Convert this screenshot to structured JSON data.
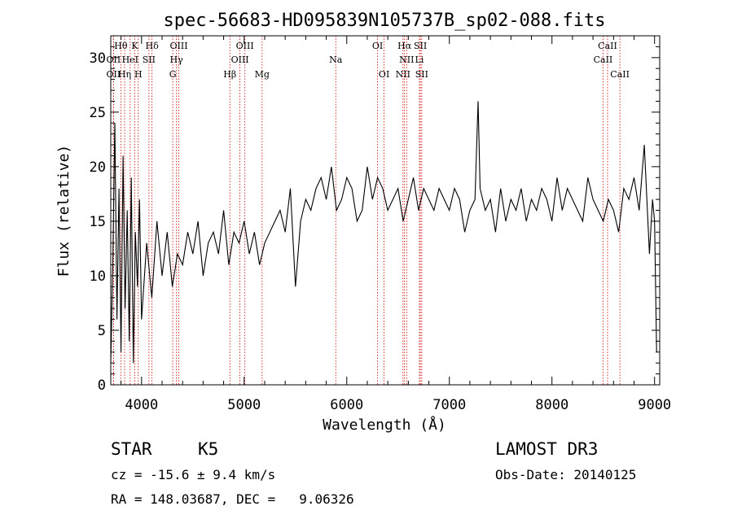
{
  "chart_data": {
    "type": "line",
    "title": "spec-56683-HD095839N105737B_sp02-088.fits",
    "xlabel": "Wavelength (Å)",
    "ylabel": "Flux (relative)",
    "xlim": [
      3700,
      9050
    ],
    "ylim": [
      0,
      32
    ],
    "xticks": [
      4000,
      5000,
      6000,
      7000,
      8000,
      9000
    ],
    "yticks": [
      0,
      5,
      10,
      15,
      20,
      25,
      30
    ],
    "series": [
      {
        "x": [
          3700,
          3720,
          3740,
          3760,
          3780,
          3800,
          3820,
          3840,
          3860,
          3880,
          3900,
          3920,
          3940,
          3960,
          3980,
          4000,
          4050,
          4100,
          4150,
          4200,
          4250,
          4300,
          4350,
          4400,
          4450,
          4500,
          4550,
          4600,
          4650,
          4700,
          4750,
          4800,
          4850,
          4900,
          4950,
          5000,
          5050,
          5100,
          5150,
          5200,
          5250,
          5300,
          5350,
          5400,
          5450,
          5500,
          5550,
          5600,
          5650,
          5700,
          5750,
          5800,
          5850,
          5900,
          5950,
          6000,
          6050,
          6100,
          6150,
          6200,
          6250,
          6300,
          6350,
          6400,
          6450,
          6500,
          6550,
          6600,
          6650,
          6700,
          6750,
          6800,
          6850,
          6900,
          6950,
          7000,
          7050,
          7100,
          7150,
          7200,
          7250,
          7280,
          7300,
          7350,
          7400,
          7450,
          7500,
          7550,
          7600,
          7650,
          7700,
          7750,
          7800,
          7850,
          7900,
          7950,
          8000,
          8050,
          8100,
          8150,
          8200,
          8250,
          8300,
          8350,
          8400,
          8450,
          8500,
          8550,
          8600,
          8650,
          8700,
          8750,
          8800,
          8850,
          8900,
          8950,
          8980,
          9000,
          9020
        ],
        "y": [
          2,
          11,
          24,
          6,
          18,
          3,
          21,
          7,
          16,
          4,
          19,
          2,
          14,
          9,
          17,
          6,
          13,
          8,
          15,
          10,
          14,
          9,
          12,
          11,
          14,
          12,
          15,
          10,
          13,
          14,
          12,
          16,
          11,
          14,
          13,
          15,
          12,
          14,
          11,
          13,
          14,
          15,
          16,
          14,
          18,
          9,
          15,
          17,
          16,
          18,
          19,
          17,
          20,
          16,
          17,
          19,
          18,
          15,
          16,
          20,
          17,
          19,
          18,
          16,
          17,
          18,
          15,
          17,
          19,
          16,
          18,
          17,
          16,
          18,
          17,
          16,
          18,
          17,
          14,
          16,
          17,
          26,
          18,
          16,
          17,
          14,
          18,
          15,
          17,
          16,
          18,
          15,
          17,
          16,
          18,
          17,
          15,
          19,
          16,
          18,
          17,
          16,
          15,
          19,
          17,
          16,
          15,
          17,
          16,
          14,
          18,
          17,
          19,
          16,
          22,
          12,
          17,
          15,
          3
        ]
      }
    ],
    "spectral_lines": [
      {
        "name": "Hθ",
        "x": 3798,
        "row": 0
      },
      {
        "name": "K",
        "x": 3934,
        "row": 0
      },
      {
        "name": "Hδ",
        "x": 4102,
        "row": 0
      },
      {
        "name": "OIII",
        "x": 4363,
        "row": 0
      },
      {
        "name": "OIII",
        "x": 5007,
        "row": 0
      },
      {
        "name": "OI",
        "x": 6300,
        "row": 0
      },
      {
        "name": "Hα",
        "x": 6563,
        "row": 0
      },
      {
        "name": "SII",
        "x": 6717,
        "row": 0
      },
      {
        "name": "CaII",
        "x": 8542,
        "row": 0
      },
      {
        "name": "OII",
        "x": 3727,
        "row": 1
      },
      {
        "name": "HeI",
        "x": 3889,
        "row": 1
      },
      {
        "name": "SII",
        "x": 4072,
        "row": 1
      },
      {
        "name": "Hγ",
        "x": 4340,
        "row": 1
      },
      {
        "name": "OIII",
        "x": 4959,
        "row": 1
      },
      {
        "name": "Na",
        "x": 5893,
        "row": 1
      },
      {
        "name": "NII",
        "x": 6584,
        "row": 1
      },
      {
        "name": "Li",
        "x": 6708,
        "row": 1
      },
      {
        "name": "CaII",
        "x": 8498,
        "row": 1
      },
      {
        "name": "OII",
        "x": 3727,
        "row": 2
      },
      {
        "name": "Hη",
        "x": 3835,
        "row": 2
      },
      {
        "name": "H",
        "x": 3968,
        "row": 2
      },
      {
        "name": "G",
        "x": 4304,
        "row": 2
      },
      {
        "name": "Hβ",
        "x": 4861,
        "row": 2
      },
      {
        "name": "Mg",
        "x": 5175,
        "row": 2
      },
      {
        "name": "OI",
        "x": 6364,
        "row": 2
      },
      {
        "name": "NII",
        "x": 6548,
        "row": 2
      },
      {
        "name": "SII",
        "x": 6731,
        "row": 2
      },
      {
        "name": "CaII",
        "x": 8662,
        "row": 2
      }
    ]
  },
  "info": {
    "class": "STAR",
    "subclass": "K5",
    "survey": "LAMOST DR3",
    "cz": "cz = -15.6 ± 9.4 km/s",
    "obs_date": "Obs-Date: 20140125",
    "coords": "RA = 148.03687, DEC =   9.06326"
  },
  "colors": {
    "spectrum": "#000000",
    "line_markers": "#cc0000"
  }
}
